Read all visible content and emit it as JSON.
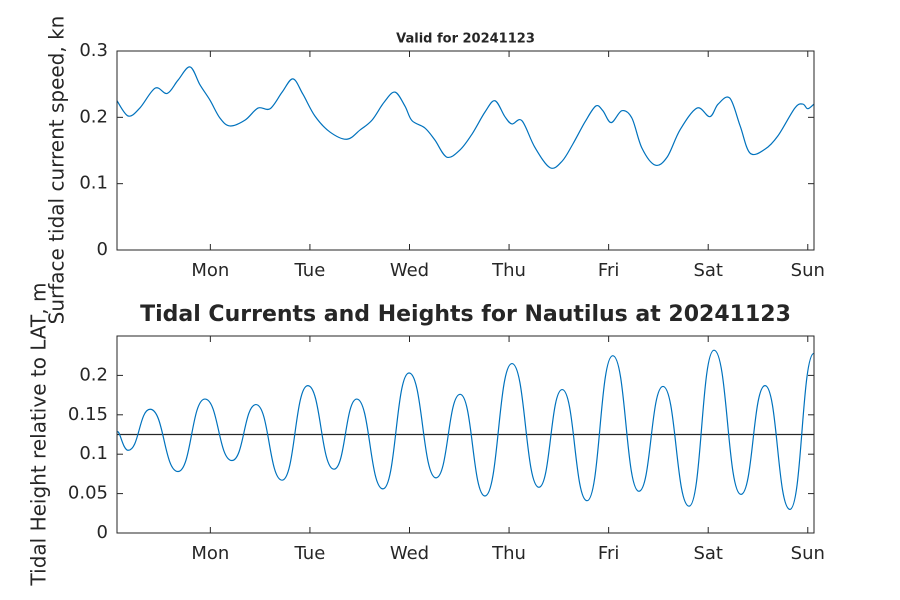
{
  "chart_data": [
    {
      "type": "line",
      "title": "Valid for 20241123",
      "ylabel": "Surface tidal current speed, kn",
      "color": "#0072bd",
      "x": [
        0,
        2.7,
        5.5,
        9.2,
        12.1,
        14.7,
        17.6,
        20.0,
        22.4,
        24.8,
        27.2,
        30.9,
        34.0,
        36.9,
        39.8,
        42.4,
        44.8,
        47.7,
        51.3,
        55.4,
        58.6,
        61.5,
        64.4,
        67.0,
        69.4,
        71.1,
        74.2,
        76.6,
        79.5,
        82.7,
        85.6,
        88.7,
        91.1,
        93.5,
        95.2,
        97.6,
        100.7,
        104.4,
        107.3,
        109.9,
        112.8,
        115.4,
        117.1,
        119.1,
        121.7,
        124.1,
        126.5,
        129.7,
        132.6,
        135.7,
        139.8,
        142.9,
        144.9,
        147.7,
        150.2,
        152.6,
        156.2,
        159.3,
        163.4,
        165.3,
        166.5,
        168.0
      ],
      "values": [
        0.225,
        0.202,
        0.214,
        0.244,
        0.236,
        0.256,
        0.276,
        0.249,
        0.226,
        0.199,
        0.187,
        0.196,
        0.214,
        0.213,
        0.238,
        0.258,
        0.235,
        0.202,
        0.178,
        0.167,
        0.181,
        0.196,
        0.223,
        0.238,
        0.217,
        0.195,
        0.184,
        0.166,
        0.14,
        0.151,
        0.175,
        0.208,
        0.225,
        0.201,
        0.19,
        0.195,
        0.155,
        0.124,
        0.134,
        0.16,
        0.193,
        0.217,
        0.21,
        0.192,
        0.21,
        0.199,
        0.154,
        0.128,
        0.14,
        0.181,
        0.214,
        0.201,
        0.22,
        0.229,
        0.187,
        0.146,
        0.152,
        0.172,
        0.214,
        0.22,
        0.213,
        0.22
      ],
      "xlim": [
        0,
        168
      ],
      "xticks": [
        {
          "value": 22.5,
          "label": "Mon"
        },
        {
          "value": 46.5,
          "label": "Tue"
        },
        {
          "value": 70.5,
          "label": "Wed"
        },
        {
          "value": 94.5,
          "label": "Thu"
        },
        {
          "value": 118.5,
          "label": "Fri"
        },
        {
          "value": 142.5,
          "label": "Sat"
        },
        {
          "value": 166.5,
          "label": "Sun"
        }
      ],
      "ylim": [
        0,
        0.3
      ],
      "yticks": [
        0,
        0.1,
        0.2,
        0.3
      ]
    },
    {
      "type": "line",
      "title": "Tidal Currents and Heights for Nautilus at 20241123",
      "ylabel": "Tidal Height relative to LAT, m",
      "color": "#0072bd",
      "x": [
        0,
        2.7,
        8.0,
        14.7,
        21.2,
        27.7,
        33.5,
        39.8,
        46.0,
        52.3,
        57.8,
        64.1,
        70.4,
        76.9,
        82.7,
        88.7,
        95.2,
        101.7,
        107.3,
        113.3,
        119.5,
        125.8,
        131.6,
        137.9,
        143.9,
        150.4,
        156.2,
        162.2,
        168.0
      ],
      "values": [
        0.128,
        0.105,
        0.157,
        0.078,
        0.17,
        0.092,
        0.163,
        0.067,
        0.187,
        0.081,
        0.17,
        0.056,
        0.203,
        0.07,
        0.176,
        0.047,
        0.215,
        0.058,
        0.182,
        0.041,
        0.225,
        0.053,
        0.186,
        0.034,
        0.232,
        0.049,
        0.187,
        0.03,
        0.228
      ],
      "hline": 0.125,
      "hline_color": "#262626",
      "xlim": [
        0,
        168
      ],
      "xticks": [
        {
          "value": 22.5,
          "label": "Mon"
        },
        {
          "value": 46.5,
          "label": "Tue"
        },
        {
          "value": 70.5,
          "label": "Wed"
        },
        {
          "value": 94.5,
          "label": "Thu"
        },
        {
          "value": 118.5,
          "label": "Fri"
        },
        {
          "value": 142.5,
          "label": "Sat"
        },
        {
          "value": 166.5,
          "label": "Sun"
        }
      ],
      "ylim": [
        0,
        0.25
      ],
      "yticks": [
        0,
        0.05,
        0.1,
        0.15,
        0.2
      ]
    }
  ]
}
